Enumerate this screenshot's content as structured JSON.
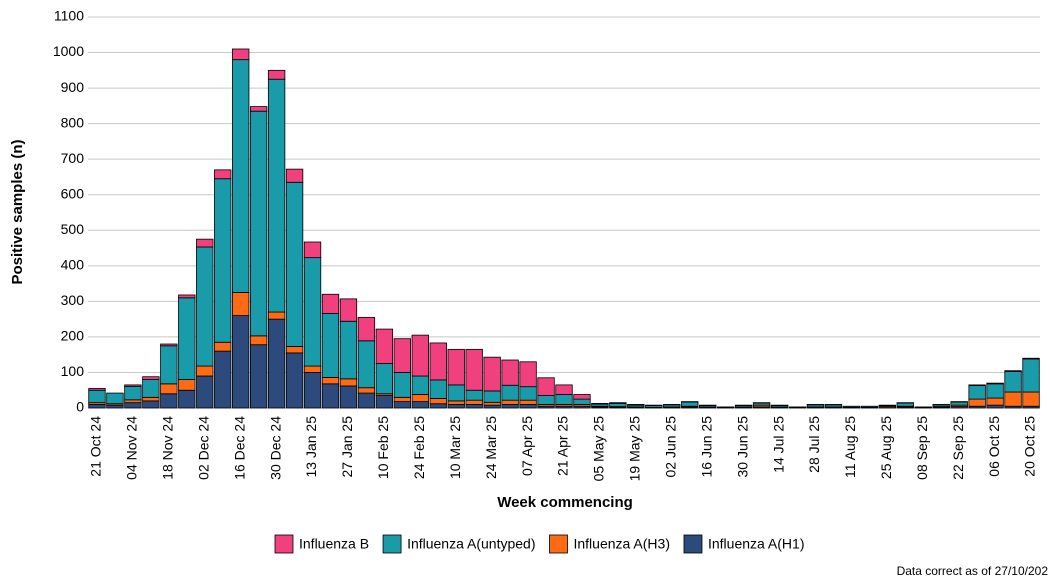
{
  "chart_data": {
    "type": "stacked_bar",
    "xlabel": "Week commencing",
    "ylabel": "Positive samples (n)",
    "note": "Data correct as of 27/10/202",
    "categories": [
      "21 Oct 24",
      null,
      "04 Nov 24",
      null,
      "18 Nov 24",
      null,
      "02 Dec 24",
      null,
      "16 Dec 24",
      null,
      "30 Dec 24",
      null,
      "13 Jan 25",
      null,
      "27 Jan 25",
      null,
      "10 Feb 25",
      null,
      "24 Feb 25",
      null,
      "10 Mar 25",
      null,
      "24 Mar 25",
      null,
      "07 Apr 25",
      null,
      "21 Apr 25",
      null,
      "05 May 25",
      null,
      "19 May 25",
      null,
      "02 Jun 25",
      null,
      "16 Jun 25",
      null,
      "30 Jun 25",
      null,
      "14 Jul 25",
      null,
      "28 Jul 25",
      null,
      "11 Aug 25",
      null,
      "25 Aug 25",
      null,
      "08 Sep 25",
      null,
      "22 Sep 25",
      null,
      "06 Oct 25",
      null,
      "20 Oct 25"
    ],
    "series": [
      {
        "name": "Influenza B",
        "color": "#f0407e",
        "values": [
          5,
          0,
          4,
          8,
          5,
          8,
          22,
          25,
          30,
          13,
          25,
          37,
          44,
          54,
          63,
          66,
          97,
          95,
          115,
          104,
          100,
          115,
          95,
          71,
          70,
          50,
          27,
          13,
          2,
          2,
          2,
          1,
          1,
          1,
          1,
          0,
          1,
          1,
          1,
          0,
          1,
          1,
          0,
          0,
          1,
          1,
          0,
          1,
          1,
          2,
          2,
          2,
          2
        ]
      },
      {
        "name": "Influenza A(untyped)",
        "color": "#1a9baa",
        "values": [
          35,
          30,
          38,
          50,
          107,
          230,
          335,
          460,
          655,
          632,
          655,
          462,
          305,
          180,
          162,
          132,
          85,
          70,
          52,
          52,
          45,
          28,
          32,
          42,
          38,
          25,
          28,
          15,
          6,
          9,
          5,
          5,
          6,
          12,
          4,
          2,
          4,
          6,
          4,
          2,
          6,
          6,
          3,
          3,
          3,
          9,
          2,
          5,
          9,
          38,
          40,
          58,
          93
        ]
      },
      {
        "name": "Influenza A(H3)",
        "color": "#ff6a13",
        "values": [
          5,
          4,
          8,
          10,
          28,
          30,
          28,
          25,
          65,
          25,
          20,
          18,
          18,
          18,
          20,
          15,
          5,
          12,
          20,
          15,
          10,
          12,
          8,
          12,
          12,
          5,
          5,
          5,
          2,
          2,
          1,
          1,
          1,
          2,
          1,
          0,
          1,
          5,
          1,
          0,
          1,
          1,
          1,
          1,
          3,
          2,
          0,
          2,
          4,
          20,
          20,
          40,
          40
        ]
      },
      {
        "name": "Influenza A(H1)",
        "color": "#2c4a7c",
        "values": [
          10,
          8,
          15,
          20,
          40,
          50,
          90,
          160,
          260,
          178,
          250,
          155,
          100,
          68,
          62,
          42,
          35,
          18,
          18,
          12,
          10,
          10,
          8,
          10,
          10,
          5,
          5,
          5,
          3,
          2,
          2,
          1,
          2,
          3,
          2,
          1,
          2,
          3,
          2,
          1,
          2,
          2,
          1,
          1,
          1,
          3,
          1,
          2,
          4,
          5,
          8,
          5,
          5
        ]
      }
    ],
    "ylim": [
      0,
      1100
    ],
    "yticks": [
      0,
      100,
      200,
      300,
      400,
      500,
      600,
      700,
      800,
      900,
      1000,
      1100
    ],
    "grid": true
  }
}
